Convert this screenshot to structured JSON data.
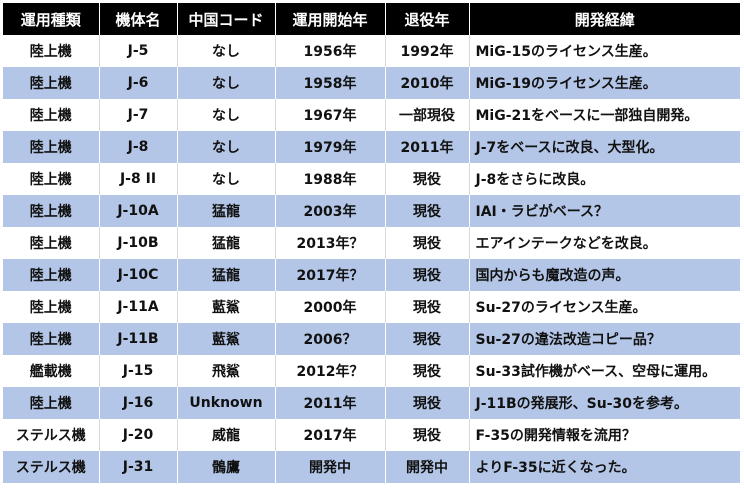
{
  "table": {
    "headers": [
      "運用種類",
      "機体名",
      "中国コード",
      "運用開始年",
      "退役年",
      "開発経緯"
    ],
    "rows": [
      [
        "陸上機",
        "J-5",
        "なし",
        "1956年",
        "1992年",
        "MiG-15のライセンス生産。"
      ],
      [
        "陸上機",
        "J-6",
        "なし",
        "1958年",
        "2010年",
        "MiG-19のライセンス生産。"
      ],
      [
        "陸上機",
        "J-7",
        "なし",
        "1967年",
        "一部現役",
        "MiG-21をベースに一部独自開発。"
      ],
      [
        "陸上機",
        "J-8",
        "なし",
        "1979年",
        "2011年",
        "J-7をベースに改良、大型化。"
      ],
      [
        "陸上機",
        "J-8 II",
        "なし",
        "1988年",
        "現役",
        "J-8をさらに改良。"
      ],
      [
        "陸上機",
        "J-10A",
        "猛龍",
        "2003年",
        "現役",
        "IAI・ラビがベース？"
      ],
      [
        "陸上機",
        "J-10B",
        "猛龍",
        "2013年？",
        "現役",
        "エアインテークなどを改良。"
      ],
      [
        "陸上機",
        "J-10C",
        "猛龍",
        "2017年？",
        "現役",
        "国内からも魔改造の声。"
      ],
      [
        "陸上機",
        "J-11A",
        "藍鯊",
        "2000年",
        "現役",
        "Su-27のライセンス生産。"
      ],
      [
        "陸上機",
        "J-11B",
        "藍鯊",
        "2006？",
        "現役",
        "Su-27の違法改造コピー品？"
      ],
      [
        "艦載機",
        "J-15",
        "飛鯊",
        "2012年？",
        "現役",
        "Su-33試作機がベース、空母に運用。"
      ],
      [
        "陸上機",
        "J-16",
        "Unknown",
        "2011年",
        "現役",
        "J-11Bの発展形、Su-30を参考。"
      ],
      [
        "ステルス機",
        "J-20",
        "威龍",
        "2017年",
        "現役",
        "F-35の開発情報を流用？"
      ],
      [
        "ステルス機",
        "J-31",
        "鶻鷹",
        "開発中",
        "開発中",
        "よりF-35に近くなった。"
      ]
    ]
  },
  "colors": {
    "header_bg": "#000000",
    "band_bg": "#b4c6e7",
    "row_bg": "#ffffff"
  }
}
